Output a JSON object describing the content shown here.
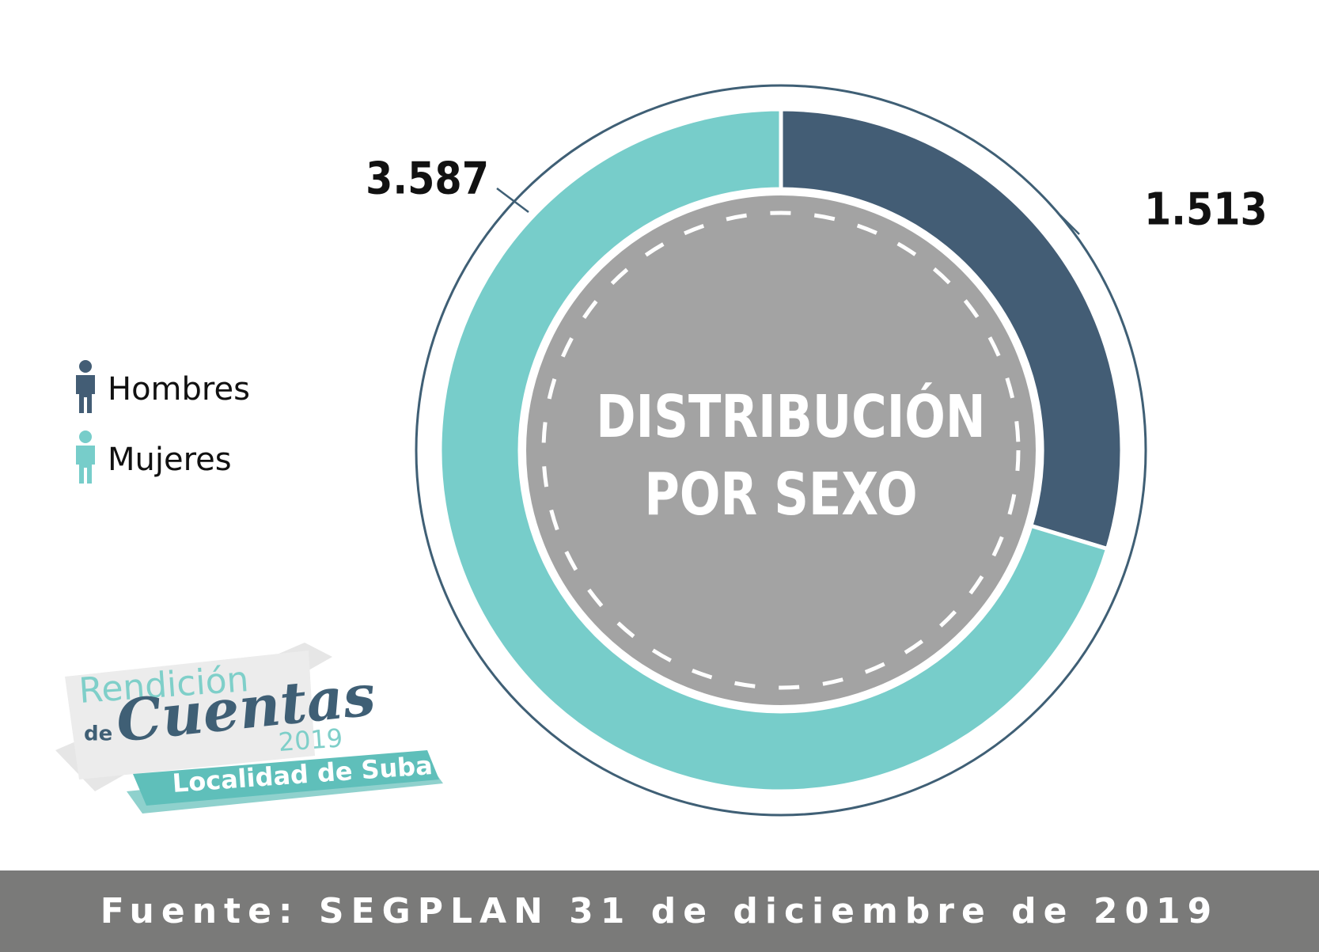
{
  "chart_data": {
    "type": "donut",
    "title": "DISTRIBUCIÓN POR SEXO",
    "categories": [
      "Hombres",
      "Mujeres"
    ],
    "values": [
      1513,
      3587
    ],
    "value_labels": [
      "1.513",
      "3.587"
    ],
    "colors": [
      "#435d75",
      "#77cdca"
    ],
    "source": "Fuente: SEGPLAN 31 de diciembre de 2019"
  },
  "logo": {
    "line1": "Rendición",
    "line2": "de",
    "line3": "Cuentas",
    "year": "2019",
    "place": "Localidad de Suba"
  }
}
